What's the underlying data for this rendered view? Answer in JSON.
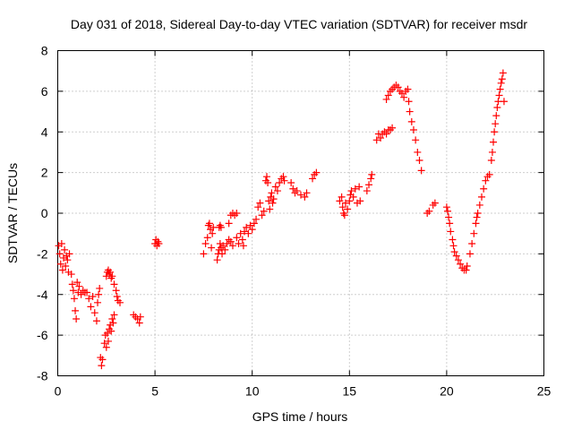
{
  "chart_data": {
    "type": "scatter",
    "title": "Day 031 of 2018, Sidereal Day-to-day VTEC variation (SDTVAR) for receiver msdr",
    "xlabel": "GPS time / hours",
    "ylabel": "SDTVAR / TECUs",
    "xlim": [
      0,
      25
    ],
    "ylim": [
      -8,
      8
    ],
    "xticks": [
      0,
      5,
      10,
      15,
      20,
      25
    ],
    "yticks": [
      -8,
      -6,
      -4,
      -2,
      0,
      2,
      4,
      6,
      8
    ],
    "grid": true,
    "marker": "+",
    "series": [
      {
        "name": "SDTVAR",
        "color": "#ff0000",
        "points": [
          [
            0.05,
            -1.6
          ],
          [
            0.1,
            -2.0
          ],
          [
            0.15,
            -2.5
          ],
          [
            0.2,
            -1.5
          ],
          [
            0.25,
            -2.8
          ],
          [
            0.3,
            -2.2
          ],
          [
            0.35,
            -1.8
          ],
          [
            0.4,
            -2.6
          ],
          [
            0.45,
            -2.1
          ],
          [
            0.5,
            -2.3
          ],
          [
            0.55,
            -2.9
          ],
          [
            0.6,
            -2.0
          ],
          [
            0.7,
            -3.0
          ],
          [
            0.75,
            -3.5
          ],
          [
            0.8,
            -3.8
          ],
          [
            0.85,
            -4.2
          ],
          [
            0.9,
            -4.8
          ],
          [
            0.95,
            -5.2
          ],
          [
            1.0,
            -3.4
          ],
          [
            1.05,
            -3.9
          ],
          [
            1.1,
            -3.6
          ],
          [
            1.2,
            -4.0
          ],
          [
            1.3,
            -3.8
          ],
          [
            1.4,
            -3.9
          ],
          [
            1.5,
            -3.9
          ],
          [
            1.6,
            -4.2
          ],
          [
            1.7,
            -4.6
          ],
          [
            1.8,
            -4.1
          ],
          [
            1.9,
            -4.9
          ],
          [
            2.0,
            -5.3
          ],
          [
            2.05,
            -4.4
          ],
          [
            2.1,
            -4.0
          ],
          [
            2.15,
            -3.7
          ],
          [
            2.2,
            -7.1
          ],
          [
            2.25,
            -7.5
          ],
          [
            2.3,
            -7.2
          ],
          [
            2.4,
            -6.4
          ],
          [
            2.45,
            -6.0
          ],
          [
            2.5,
            -6.6
          ],
          [
            2.55,
            -5.9
          ],
          [
            2.6,
            -6.3
          ],
          [
            2.65,
            -5.7
          ],
          [
            2.7,
            -5.5
          ],
          [
            2.75,
            -5.8
          ],
          [
            2.8,
            -5.2
          ],
          [
            2.85,
            -5.4
          ],
          [
            2.9,
            -5.0
          ],
          [
            2.5,
            -3.1
          ],
          [
            2.55,
            -2.9
          ],
          [
            2.6,
            -2.8
          ],
          [
            2.65,
            -3.0
          ],
          [
            2.7,
            -2.9
          ],
          [
            2.75,
            -3.2
          ],
          [
            2.8,
            -3.1
          ],
          [
            2.9,
            -3.5
          ],
          [
            3.0,
            -3.8
          ],
          [
            3.05,
            -4.1
          ],
          [
            3.1,
            -4.3
          ],
          [
            3.2,
            -4.4
          ],
          [
            3.9,
            -5.0
          ],
          [
            4.0,
            -5.1
          ],
          [
            4.1,
            -5.2
          ],
          [
            4.2,
            -5.4
          ],
          [
            4.25,
            -5.1
          ],
          [
            5.0,
            -1.5
          ],
          [
            5.05,
            -1.3
          ],
          [
            5.1,
            -1.6
          ],
          [
            5.15,
            -1.4
          ],
          [
            5.2,
            -1.5
          ],
          [
            7.5,
            -2.0
          ],
          [
            7.6,
            -1.5
          ],
          [
            7.7,
            -1.2
          ],
          [
            7.75,
            -0.6
          ],
          [
            7.8,
            -0.5
          ],
          [
            7.85,
            -0.8
          ],
          [
            7.9,
            -1.7
          ],
          [
            7.95,
            -1.0
          ],
          [
            8.0,
            -0.7
          ],
          [
            8.2,
            -2.3
          ],
          [
            8.25,
            -2.0
          ],
          [
            8.3,
            -1.8
          ],
          [
            8.35,
            -1.5
          ],
          [
            8.4,
            -1.7
          ],
          [
            8.45,
            -2.0
          ],
          [
            8.5,
            -1.6
          ],
          [
            8.6,
            -1.8
          ],
          [
            8.7,
            -1.5
          ],
          [
            8.8,
            -1.3
          ],
          [
            8.9,
            -1.4
          ],
          [
            9.0,
            -1.6
          ],
          [
            8.3,
            -0.7
          ],
          [
            8.35,
            -0.6
          ],
          [
            8.4,
            -0.7
          ],
          [
            8.8,
            -0.5
          ],
          [
            8.9,
            -0.1
          ],
          [
            9.0,
            0.0
          ],
          [
            9.1,
            -0.1
          ],
          [
            9.2,
            0.0
          ],
          [
            9.2,
            -1.2
          ],
          [
            9.3,
            -1.5
          ],
          [
            9.4,
            -1.0
          ],
          [
            9.5,
            -1.3
          ],
          [
            9.55,
            -1.6
          ],
          [
            9.6,
            -0.9
          ],
          [
            9.7,
            -0.7
          ],
          [
            9.8,
            -1.0
          ],
          [
            9.9,
            -0.6
          ],
          [
            10.0,
            -0.8
          ],
          [
            10.1,
            -0.5
          ],
          [
            10.2,
            -0.3
          ],
          [
            10.3,
            0.3
          ],
          [
            10.4,
            0.5
          ],
          [
            10.5,
            -0.1
          ],
          [
            10.6,
            0.1
          ],
          [
            10.7,
            1.6
          ],
          [
            10.75,
            1.8
          ],
          [
            10.8,
            1.5
          ],
          [
            10.85,
            0.6
          ],
          [
            10.9,
            0.2
          ],
          [
            10.95,
            0.8
          ],
          [
            11.0,
            1.0
          ],
          [
            11.05,
            0.5
          ],
          [
            11.1,
            0.7
          ],
          [
            11.2,
            1.3
          ],
          [
            11.3,
            1.1
          ],
          [
            11.4,
            1.5
          ],
          [
            11.5,
            1.7
          ],
          [
            11.6,
            1.8
          ],
          [
            11.65,
            1.6
          ],
          [
            12.0,
            1.5
          ],
          [
            12.1,
            1.2
          ],
          [
            12.2,
            1.0
          ],
          [
            12.3,
            1.1
          ],
          [
            12.5,
            0.9
          ],
          [
            12.7,
            0.8
          ],
          [
            12.8,
            1.0
          ],
          [
            13.1,
            1.7
          ],
          [
            13.2,
            1.9
          ],
          [
            13.3,
            2.0
          ],
          [
            14.5,
            0.6
          ],
          [
            14.6,
            0.8
          ],
          [
            14.65,
            0.3
          ],
          [
            14.7,
            0.0
          ],
          [
            14.75,
            -0.1
          ],
          [
            14.8,
            0.5
          ],
          [
            14.9,
            0.2
          ],
          [
            15.0,
            0.6
          ],
          [
            15.05,
            0.9
          ],
          [
            15.1,
            1.1
          ],
          [
            15.2,
            0.8
          ],
          [
            15.3,
            1.2
          ],
          [
            15.4,
            0.5
          ],
          [
            15.5,
            1.3
          ],
          [
            15.55,
            0.6
          ],
          [
            15.9,
            1.1
          ],
          [
            16.0,
            1.4
          ],
          [
            16.1,
            1.7
          ],
          [
            16.15,
            1.9
          ],
          [
            16.4,
            3.6
          ],
          [
            16.5,
            3.9
          ],
          [
            16.6,
            3.7
          ],
          [
            16.7,
            3.9
          ],
          [
            16.8,
            4.0
          ],
          [
            16.9,
            3.9
          ],
          [
            17.0,
            4.1
          ],
          [
            17.1,
            4.1
          ],
          [
            17.2,
            4.2
          ],
          [
            16.9,
            5.6
          ],
          [
            17.0,
            5.8
          ],
          [
            17.1,
            6.0
          ],
          [
            17.2,
            6.1
          ],
          [
            17.3,
            6.2
          ],
          [
            17.4,
            6.3
          ],
          [
            17.5,
            6.2
          ],
          [
            17.6,
            6.0
          ],
          [
            17.7,
            5.9
          ],
          [
            17.8,
            5.7
          ],
          [
            17.9,
            6.0
          ],
          [
            18.0,
            6.1
          ],
          [
            18.05,
            5.5
          ],
          [
            18.1,
            5.0
          ],
          [
            18.2,
            4.5
          ],
          [
            18.3,
            4.1
          ],
          [
            18.4,
            3.6
          ],
          [
            18.5,
            3.0
          ],
          [
            18.6,
            2.6
          ],
          [
            18.7,
            2.1
          ],
          [
            19.0,
            0.0
          ],
          [
            19.1,
            0.1
          ],
          [
            19.3,
            0.4
          ],
          [
            19.4,
            0.5
          ],
          [
            20.0,
            0.3
          ],
          [
            20.05,
            0.1
          ],
          [
            20.1,
            -0.2
          ],
          [
            20.15,
            -0.5
          ],
          [
            20.2,
            -0.9
          ],
          [
            20.3,
            -1.3
          ],
          [
            20.35,
            -1.6
          ],
          [
            20.4,
            -1.9
          ],
          [
            20.5,
            -2.1
          ],
          [
            20.6,
            -2.3
          ],
          [
            20.7,
            -2.5
          ],
          [
            20.8,
            -2.7
          ],
          [
            20.9,
            -2.8
          ],
          [
            21.0,
            -2.8
          ],
          [
            21.05,
            -2.6
          ],
          [
            21.2,
            -2.0
          ],
          [
            21.3,
            -1.5
          ],
          [
            21.4,
            -1.0
          ],
          [
            21.5,
            -0.5
          ],
          [
            21.55,
            -0.2
          ],
          [
            21.6,
            0.0
          ],
          [
            21.7,
            0.4
          ],
          [
            21.8,
            0.8
          ],
          [
            21.9,
            1.2
          ],
          [
            22.0,
            1.6
          ],
          [
            22.1,
            1.8
          ],
          [
            22.2,
            1.9
          ],
          [
            22.3,
            2.6
          ],
          [
            22.35,
            3.0
          ],
          [
            22.4,
            3.5
          ],
          [
            22.45,
            4.0
          ],
          [
            22.5,
            4.4
          ],
          [
            22.55,
            4.8
          ],
          [
            22.6,
            5.2
          ],
          [
            22.65,
            5.5
          ],
          [
            22.7,
            5.8
          ],
          [
            22.75,
            6.1
          ],
          [
            22.8,
            6.4
          ],
          [
            22.85,
            6.6
          ],
          [
            22.9,
            6.9
          ],
          [
            22.95,
            5.5
          ]
        ]
      }
    ]
  }
}
